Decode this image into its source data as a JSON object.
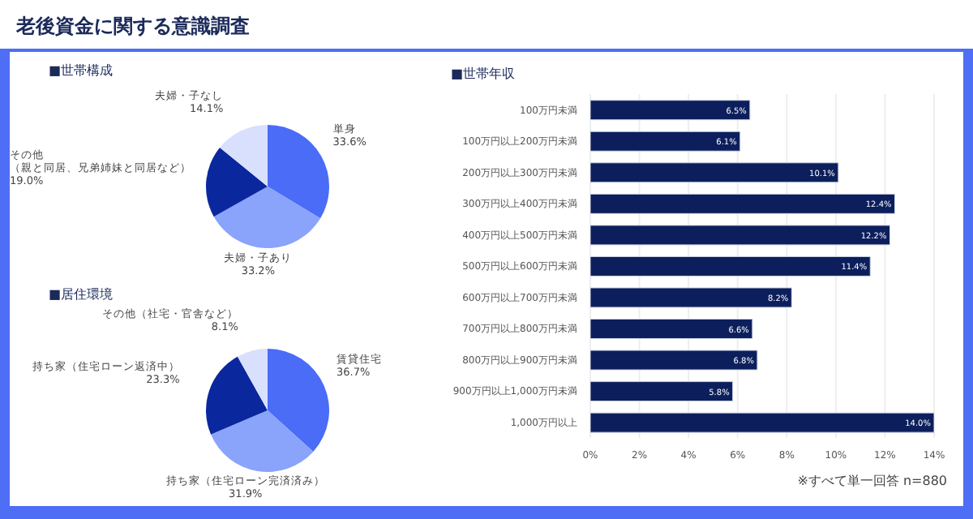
{
  "chart_data": [
    {
      "type": "pie",
      "title": "老後資金に関する意識調査",
      "subtitle": "■世帯構成",
      "categories": [
        "単身",
        "夫婦・子あり",
        "その他（親と同居、兄弟姉妹と同居など）",
        "夫婦・子なし"
      ],
      "values": [
        33.6,
        33.2,
        19.0,
        14.1
      ],
      "colors": [
        "#4a6cf7",
        "#8aa3fb",
        "#0a279e",
        "#d9e0fd"
      ],
      "value_labels": [
        "33.6%",
        "33.2%",
        "19.0%",
        "14.1%"
      ]
    },
    {
      "type": "bar",
      "title": "■世帯年収",
      "orientation": "horizontal",
      "categories": [
        "100万円未満",
        "100万円以上200万円未満",
        "200万円以上300万円未満",
        "300万円以上400万円未満",
        "400万円以上500万円未満",
        "500万円以上600万円未満",
        "600万円以上700万円未満",
        "700万円以上800万円未満",
        "800万円以上900万円未満",
        "900万円以上1,000万円未満",
        "1,000万円以上"
      ],
      "values": [
        6.5,
        6.1,
        10.1,
        12.4,
        12.2,
        11.4,
        8.2,
        6.6,
        6.8,
        5.8,
        14.0
      ],
      "color": "#0c1f5c",
      "value_labels": [
        "6.5%",
        "6.1%",
        "10.1%",
        "12.4%",
        "12.2%",
        "11.4%",
        "8.2%",
        "6.6%",
        "6.8%",
        "5.8%",
        "14.0%"
      ],
      "xlim": [
        0,
        14
      ],
      "xticks": [
        {
          "value": 0,
          "label": "0%"
        },
        {
          "value": 2,
          "label": "2%"
        },
        {
          "value": 4,
          "label": "4%"
        },
        {
          "value": 6,
          "label": "6%"
        },
        {
          "value": 8,
          "label": "8%"
        },
        {
          "value": 10,
          "label": "10%"
        },
        {
          "value": 12,
          "label": "12%"
        },
        {
          "value": 14,
          "label": "14%"
        }
      ],
      "grid": "x",
      "annotations": [
        "※すべて単一回答 n=880"
      ]
    },
    {
      "type": "pie",
      "title": "■居住環境",
      "categories": [
        "賃貸住宅",
        "持ち家（住宅ローン完済済み）",
        "持ち家（住宅ローン返済中）",
        "その他（社宅・官舎など）"
      ],
      "values": [
        36.7,
        31.9,
        23.3,
        8.1
      ],
      "colors": [
        "#4a6cf7",
        "#8aa3fb",
        "#0a279e",
        "#d9e0fd"
      ],
      "value_labels": [
        "36.7%",
        "31.9%",
        "23.3%",
        "8.1%"
      ]
    }
  ]
}
